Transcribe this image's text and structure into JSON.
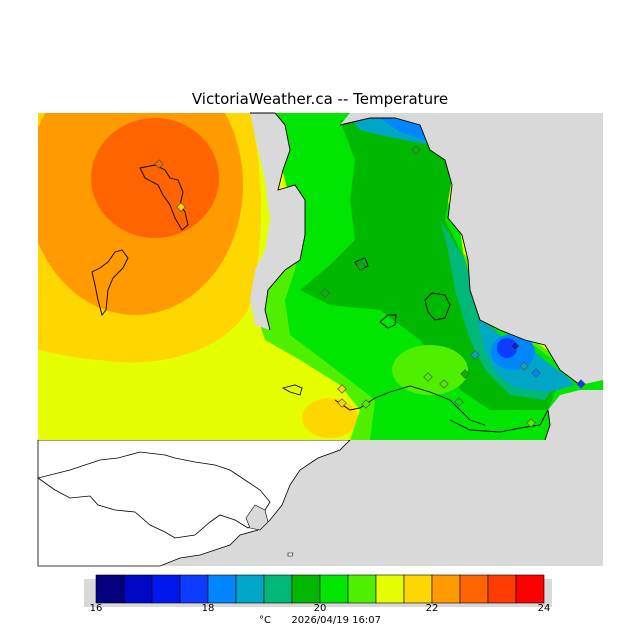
{
  "title": "VictoriaWeather.ca -- Temperature",
  "legend": {
    "colors": [
      "#05007f",
      "#0008c8",
      "#0018f0",
      "#0b3cff",
      "#0086ff",
      "#00a6c8",
      "#00b878",
      "#00b800",
      "#00e600",
      "#4ef000",
      "#e6ff00",
      "#ffd700",
      "#ff9b00",
      "#ff6400",
      "#ff3c00",
      "#ff0000"
    ],
    "tick_labels": [
      "16",
      "18",
      "20",
      "22",
      "24"
    ],
    "unit": "°C",
    "timestamp": "2026/04/19 16:07"
  }
}
